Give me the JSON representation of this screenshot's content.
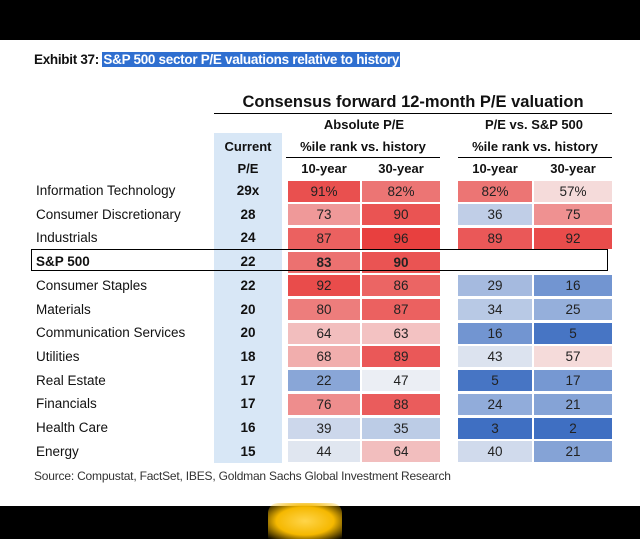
{
  "exhibit": {
    "label": "Exhibit 37:",
    "title": "S&P 500 sector P/E valuations relative to history"
  },
  "table_title": "Consensus forward 12-month P/E valuation",
  "headers": {
    "current_line1": "Current",
    "current_line2": "P/E",
    "absolute_group": "Absolute P/E",
    "absolute_sub": "%ile rank vs. history",
    "relative_group": "P/E vs. S&P 500",
    "relative_sub": "%ile rank vs. history",
    "ten_year": "10-year",
    "thirty_year": "30-year"
  },
  "source": "Source: Compustat, FactSet, IBES, Goldman Sachs Global Investment Research",
  "colors": {
    "current_col_bg": "#d8e7f6",
    "high": "#e8403f",
    "low": "#3f6fc2",
    "mid": "#f7f7f7"
  },
  "chart_data": {
    "type": "table",
    "title": "Consensus forward 12-month P/E valuation",
    "columns": [
      "Current P/E",
      "Absolute P/E 10-year %ile",
      "Absolute P/E 30-year %ile",
      "P/E vs. S&P 500 10-year %ile",
      "P/E vs. S&P 500 30-year %ile"
    ],
    "rows": [
      {
        "sector": "Information Technology",
        "current": "29x",
        "abs10": "91%",
        "abs30": "82%",
        "rel10": "82%",
        "rel30": "57%"
      },
      {
        "sector": "Consumer Discretionary",
        "current": "28",
        "abs10": "73",
        "abs30": "90",
        "rel10": "36",
        "rel30": "75"
      },
      {
        "sector": "Industrials",
        "current": "24",
        "abs10": "87",
        "abs30": "96",
        "rel10": "89",
        "rel30": "92"
      },
      {
        "sector": "S&P 500",
        "current": "22",
        "abs10": "83",
        "abs30": "90",
        "rel10": "",
        "rel30": ""
      },
      {
        "sector": "Consumer Staples",
        "current": "22",
        "abs10": "92",
        "abs30": "86",
        "rel10": "29",
        "rel30": "16"
      },
      {
        "sector": "Materials",
        "current": "20",
        "abs10": "80",
        "abs30": "87",
        "rel10": "34",
        "rel30": "25"
      },
      {
        "sector": "Communication Services",
        "current": "20",
        "abs10": "64",
        "abs30": "63",
        "rel10": "16",
        "rel30": "5"
      },
      {
        "sector": "Utilities",
        "current": "18",
        "abs10": "68",
        "abs30": "89",
        "rel10": "43",
        "rel30": "57"
      },
      {
        "sector": "Real Estate",
        "current": "17",
        "abs10": "22",
        "abs30": "47",
        "rel10": "5",
        "rel30": "17"
      },
      {
        "sector": "Financials",
        "current": "17",
        "abs10": "76",
        "abs30": "88",
        "rel10": "24",
        "rel30": "21"
      },
      {
        "sector": "Health Care",
        "current": "16",
        "abs10": "39",
        "abs30": "35",
        "rel10": "3",
        "rel30": "2"
      },
      {
        "sector": "Energy",
        "current": "15",
        "abs10": "44",
        "abs30": "64",
        "rel10": "40",
        "rel30": "21"
      }
    ]
  }
}
